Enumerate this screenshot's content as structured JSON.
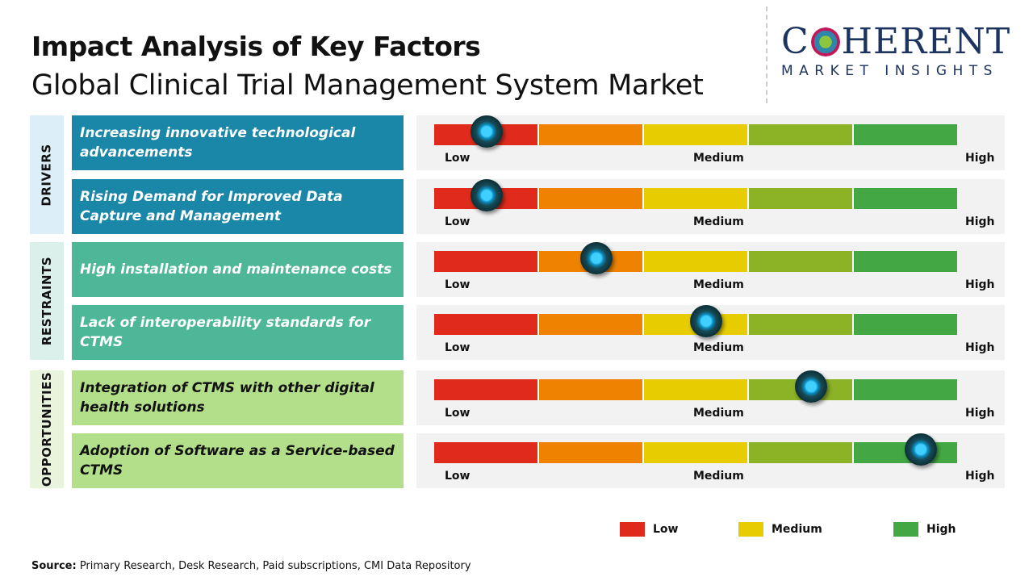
{
  "header": {
    "title": "Impact Analysis of Key Factors",
    "subtitle": "Global Clinical Trial Management System Market"
  },
  "logo": {
    "brand_left": "C",
    "brand_right": "HERENT",
    "tagline": "MARKET INSIGHTS"
  },
  "colors": {
    "segments": [
      "#e02b1c",
      "#ef8200",
      "#e6cc00",
      "#8cb226",
      "#43a743"
    ],
    "drivers": "#1a87a8",
    "restraints": "#4db797",
    "opportunities": "#b3df8a",
    "drivers_bg": "#dceff8",
    "restraints_bg": "#dbf0ea",
    "opportunities_bg": "#e8f5dc"
  },
  "scale_labels": {
    "low": "Low",
    "medium": "Medium",
    "high": "High"
  },
  "chart_data": {
    "type": "gauge",
    "scale": [
      "Low",
      "Medium",
      "High"
    ],
    "range": [
      0,
      1
    ],
    "categories": [
      {
        "name": "DRIVERS",
        "factors": [
          {
            "label": "Increasing innovative technological advancements",
            "impact": 0.1
          },
          {
            "label": "Rising Demand for Improved Data Capture and Management",
            "impact": 0.1
          }
        ]
      },
      {
        "name": "RESTRAINTS",
        "factors": [
          {
            "label": "High installation and maintenance costs",
            "impact": 0.31
          },
          {
            "label": "Lack of interoperability  standards for CTMS",
            "impact": 0.52
          }
        ]
      },
      {
        "name": "OPPORTUNITIES",
        "factors": [
          {
            "label": "Integration of CTMS with other digital health solutions",
            "impact": 0.72
          },
          {
            "label": "Adoption of Software as a Service-based CTMS",
            "impact": 0.93
          }
        ]
      }
    ]
  },
  "legend": [
    {
      "label": "Low",
      "color": "#e02b1c"
    },
    {
      "label": "Medium",
      "color": "#e6cc00"
    },
    {
      "label": "High",
      "color": "#43a743"
    }
  ],
  "source": {
    "prefix": "Source:",
    "text": " Primary Research, Desk Research, Paid subscriptions, CMI Data Repository"
  }
}
